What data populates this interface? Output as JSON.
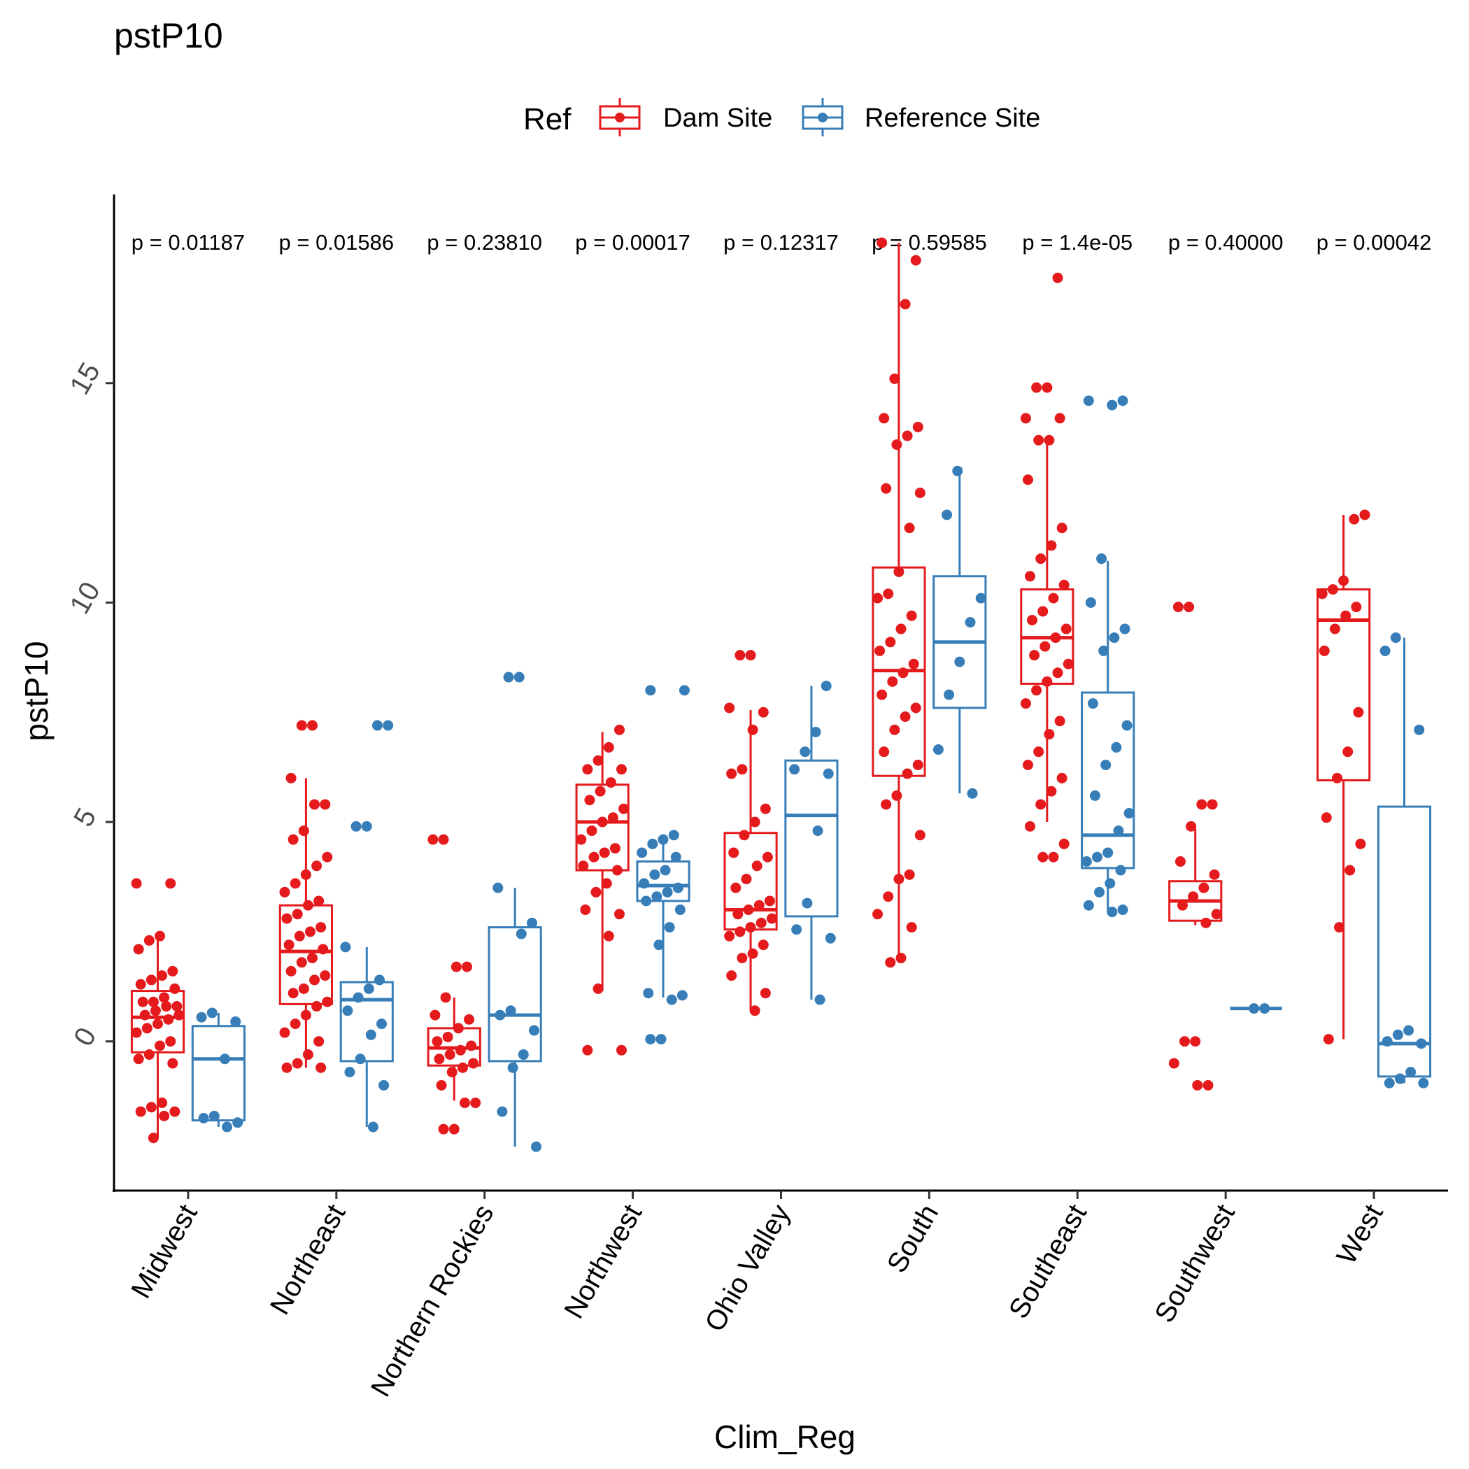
{
  "chart_data": {
    "type": "box",
    "title": "pstP10",
    "xlabel": "Clim_Reg",
    "ylabel": "pstP10",
    "legend": {
      "title": "Ref",
      "position": "top",
      "entries": [
        "Dam Site",
        "Reference Site"
      ]
    },
    "colors": {
      "Dam Site": "#E41A1C",
      "Reference Site": "#377EB8"
    },
    "ylim": [
      -3.4,
      19.3
    ],
    "yticks": [
      0,
      5,
      10,
      15
    ],
    "ytick_labels": [
      "0",
      "5",
      "10",
      "15"
    ],
    "grid": false,
    "categories": [
      "Midwest",
      "Northeast",
      "Northern Rockies",
      "Northwest",
      "Ohio Valley",
      "South",
      "Southeast",
      "Southwest",
      "West"
    ],
    "p_values": [
      "p = 0.01187",
      "p = 0.01586",
      "p = 0.23810",
      "p = 0.00017",
      "p = 0.12317",
      "p = 0.59585",
      "p = 1.4e-05",
      "p = 0.40000",
      "p = 0.00042"
    ],
    "series": [
      {
        "name": "Dam Site",
        "boxes": [
          {
            "q1": -0.25,
            "median": 0.55,
            "q3": 1.15,
            "lower": -2.2,
            "upper": 2.3
          },
          {
            "q1": 0.85,
            "median": 2.05,
            "q3": 3.1,
            "lower": -0.6,
            "upper": 6.0
          },
          {
            "q1": -0.55,
            "median": -0.15,
            "q3": 0.3,
            "lower": -1.35,
            "upper": 1.0
          },
          {
            "q1": 3.9,
            "median": 5.0,
            "q3": 5.85,
            "lower": 1.15,
            "upper": 7.05
          },
          {
            "q1": 2.55,
            "median": 3.0,
            "q3": 4.75,
            "lower": 0.7,
            "upper": 7.55
          },
          {
            "q1": 6.05,
            "median": 8.45,
            "q3": 10.8,
            "lower": 1.8,
            "upper": 18.2
          },
          {
            "q1": 8.15,
            "median": 9.2,
            "q3": 10.3,
            "lower": 5.0,
            "upper": 13.65
          },
          {
            "q1": 2.75,
            "median": 3.2,
            "q3": 3.65,
            "lower": 2.65,
            "upper": 4.85
          },
          {
            "q1": 5.95,
            "median": 9.6,
            "q3": 10.3,
            "lower": 0.05,
            "upper": 12.0
          }
        ],
        "points": [
          [
            3.6,
            3.6,
            2.4,
            2.3,
            2.1,
            1.6,
            1.5,
            1.4,
            1.3,
            1.2,
            1.0,
            0.9,
            0.9,
            0.8,
            0.8,
            0.7,
            0.6,
            0.6,
            0.5,
            0.4,
            0.3,
            0.2,
            0.0,
            -0.1,
            -0.3,
            -0.4,
            -0.5,
            -1.4,
            -1.5,
            -1.6,
            -1.6,
            -1.7,
            -2.2
          ],
          [
            7.2,
            7.2,
            6.0,
            5.4,
            5.4,
            4.8,
            4.6,
            4.2,
            4.0,
            3.8,
            3.6,
            3.4,
            3.2,
            3.1,
            2.9,
            2.8,
            2.6,
            2.5,
            2.4,
            2.2,
            2.1,
            1.9,
            1.8,
            1.6,
            1.5,
            1.4,
            1.2,
            1.1,
            0.9,
            0.8,
            0.6,
            0.4,
            0.2,
            0.0,
            -0.3,
            -0.5,
            -0.6,
            -0.6
          ],
          [
            4.6,
            4.6,
            1.7,
            1.7,
            1.0,
            0.6,
            0.5,
            0.3,
            0.1,
            0.0,
            -0.1,
            -0.2,
            -0.3,
            -0.4,
            -0.5,
            -0.6,
            -0.7,
            -1.0,
            -1.4,
            -1.4,
            -2.0,
            -2.0
          ],
          [
            7.1,
            6.7,
            6.4,
            6.2,
            6.2,
            5.9,
            5.7,
            5.5,
            5.3,
            5.1,
            5.0,
            4.8,
            4.6,
            4.4,
            4.3,
            4.2,
            4.0,
            3.9,
            3.6,
            3.4,
            3.0,
            2.9,
            2.4,
            1.2,
            -0.2,
            -0.2
          ],
          [
            8.8,
            8.8,
            7.6,
            7.5,
            7.1,
            6.2,
            6.1,
            5.3,
            5.0,
            4.7,
            4.3,
            4.2,
            4.0,
            3.7,
            3.5,
            3.2,
            3.1,
            3.0,
            2.9,
            2.8,
            2.7,
            2.6,
            2.5,
            2.4,
            2.2,
            2.0,
            1.9,
            1.5,
            1.1,
            0.7
          ],
          [
            18.2,
            17.8,
            16.8,
            15.1,
            14.2,
            14.0,
            13.8,
            13.6,
            12.6,
            12.5,
            11.7,
            10.7,
            10.2,
            10.1,
            9.7,
            9.4,
            9.1,
            8.9,
            8.6,
            8.4,
            8.2,
            7.9,
            7.6,
            7.4,
            7.1,
            6.6,
            6.3,
            6.1,
            5.6,
            5.4,
            4.7,
            3.8,
            3.7,
            3.3,
            2.9,
            2.6,
            1.9,
            1.8
          ],
          [
            17.4,
            14.9,
            14.9,
            14.2,
            14.2,
            13.7,
            13.7,
            12.8,
            11.7,
            11.3,
            11.0,
            10.6,
            10.4,
            10.1,
            9.8,
            9.6,
            9.4,
            9.2,
            9.0,
            8.8,
            8.6,
            8.4,
            8.2,
            8.0,
            7.7,
            7.3,
            7.0,
            6.6,
            6.3,
            6.0,
            5.7,
            5.4,
            4.9,
            4.5,
            4.2,
            4.2
          ],
          [
            9.9,
            9.9,
            5.4,
            5.4,
            4.9,
            4.1,
            3.8,
            3.5,
            3.3,
            3.1,
            2.9,
            2.7,
            0.0,
            0.0,
            -0.5,
            -1.0,
            -1.0
          ],
          [
            12.0,
            11.9,
            10.5,
            10.3,
            10.2,
            9.9,
            9.7,
            9.4,
            8.9,
            7.5,
            6.6,
            6.0,
            5.1,
            4.5,
            3.9,
            2.6,
            0.05
          ]
        ]
      },
      {
        "name": "Reference Site",
        "boxes": [
          {
            "q1": -1.8,
            "median": -0.4,
            "q3": 0.35,
            "lower": -1.95,
            "upper": 0.65
          },
          {
            "q1": -0.45,
            "median": 0.95,
            "q3": 1.35,
            "lower": -1.95,
            "upper": 2.15
          },
          {
            "q1": -0.45,
            "median": 0.6,
            "q3": 2.6,
            "lower": -2.4,
            "upper": 3.5
          },
          {
            "q1": 3.2,
            "median": 3.55,
            "q3": 4.1,
            "lower": 1.0,
            "upper": 4.65
          },
          {
            "q1": 2.85,
            "median": 5.15,
            "q3": 6.4,
            "lower": 0.95,
            "upper": 8.1
          },
          {
            "q1": 7.6,
            "median": 9.1,
            "q3": 10.6,
            "lower": 5.65,
            "upper": 13.0
          },
          {
            "q1": 3.95,
            "median": 4.7,
            "q3": 7.95,
            "lower": 2.95,
            "upper": 10.95
          },
          {
            "q1": 0.75,
            "median": 0.75,
            "q3": 0.75,
            "lower": 0.75,
            "upper": 0.75
          },
          {
            "q1": -0.8,
            "median": -0.05,
            "q3": 5.35,
            "lower": -0.95,
            "upper": 9.2
          }
        ],
        "points": [
          [
            0.65,
            0.55,
            0.45,
            -0.4,
            -1.7,
            -1.75,
            -1.85,
            -1.95
          ],
          [
            7.2,
            7.2,
            4.9,
            4.9,
            2.15,
            1.4,
            1.2,
            1.0,
            0.7,
            0.4,
            0.15,
            -0.4,
            -0.7,
            -1.0,
            -1.95
          ],
          [
            8.3,
            8.3,
            3.5,
            2.7,
            2.45,
            0.7,
            0.6,
            0.25,
            -0.3,
            -0.6,
            -1.6,
            -2.4
          ],
          [
            8.0,
            8.0,
            4.7,
            4.6,
            4.5,
            4.3,
            4.2,
            3.9,
            3.8,
            3.6,
            3.5,
            3.4,
            3.3,
            3.2,
            3.0,
            2.6,
            2.2,
            1.1,
            1.05,
            0.95,
            0.05,
            0.05
          ],
          [
            8.1,
            7.05,
            6.6,
            6.2,
            6.1,
            4.8,
            3.15,
            2.55,
            2.35,
            0.95
          ],
          [
            13.0,
            12.0,
            10.1,
            9.55,
            8.65,
            7.9,
            6.65,
            5.65
          ],
          [
            14.6,
            14.6,
            14.5,
            11.0,
            10.0,
            9.4,
            9.2,
            8.9,
            7.7,
            7.2,
            6.7,
            6.3,
            5.6,
            5.2,
            4.8,
            4.3,
            4.2,
            4.1,
            3.9,
            3.6,
            3.4,
            3.1,
            3.0,
            2.95
          ],
          [
            0.75,
            0.75
          ],
          [
            9.2,
            8.9,
            7.1,
            0.25,
            0.15,
            0.0,
            -0.05,
            -0.7,
            -0.85,
            -0.95,
            -0.95
          ]
        ]
      }
    ]
  }
}
